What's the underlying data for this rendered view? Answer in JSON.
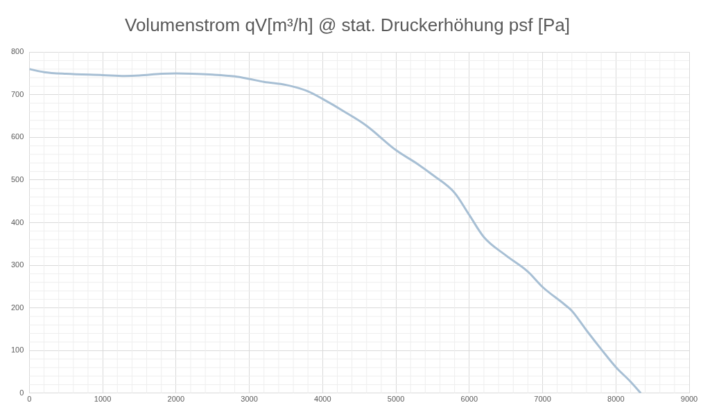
{
  "chart_data": {
    "type": "line",
    "title": "Volumenstrom qV[m³/h] @ stat. Druckerhöhung psf [Pa]",
    "x": [
      0,
      200,
      500,
      1000,
      1300,
      1500,
      1800,
      2000,
      2500,
      2800,
      3000,
      3200,
      3500,
      3800,
      4000,
      4300,
      4600,
      5000,
      5300,
      5500,
      5800,
      6000,
      6200,
      6500,
      6800,
      7000,
      7300,
      7400,
      7600,
      7800,
      8000,
      8200,
      8340
    ],
    "series": [
      {
        "color": "#a7bfd4",
        "values": [
          760,
          753,
          749,
          746,
          744,
          745,
          749,
          750,
          747,
          743,
          737,
          730,
          723,
          708,
          690,
          660,
          627,
          570,
          537,
          512,
          470,
          418,
          366,
          323,
          285,
          249,
          208,
          193,
          147,
          103,
          61,
          27,
          0
        ]
      }
    ],
    "xlim": [
      0,
      9000
    ],
    "xticks": [
      0,
      1000,
      2000,
      3000,
      4000,
      5000,
      6000,
      7000,
      8000,
      9000
    ],
    "ylim": [
      0,
      800
    ],
    "yticks": [
      0,
      100,
      200,
      300,
      400,
      500,
      600,
      700,
      800
    ],
    "grid": true,
    "legend": false,
    "marker": "none",
    "line_style": "solid"
  }
}
